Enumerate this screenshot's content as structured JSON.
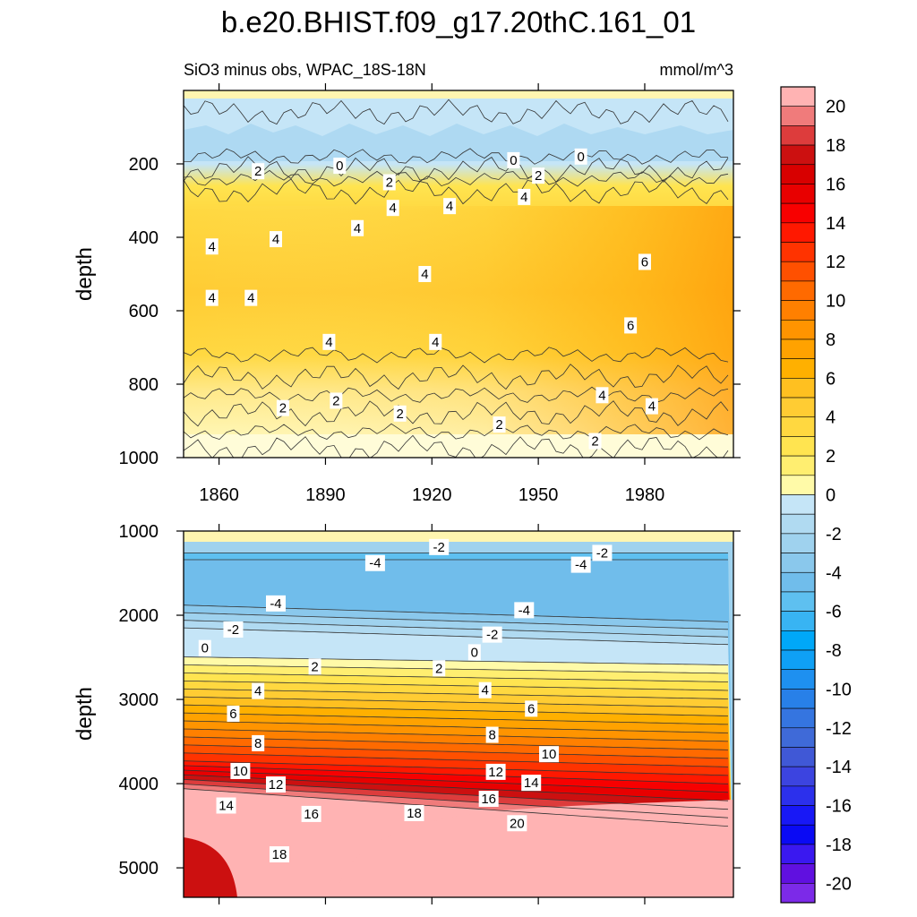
{
  "chart_data": {
    "type": "heatmap",
    "title": "b.e20.BHIST.f09_g17.20thC.161_01",
    "subtitle_left": "SiO3 minus obs, WPAC_18S-18N",
    "subtitle_right": "mmol/m^3",
    "ylabel": "depth",
    "xticks": [
      "1860",
      "1890",
      "1920",
      "1950",
      "1980"
    ],
    "xrange": [
      1850,
      2005
    ],
    "panels": [
      {
        "name": "upper",
        "ylabel": "depth",
        "ylim": [
          0,
          1000
        ],
        "yticks": [
          "200",
          "400",
          "600",
          "800",
          "1000"
        ],
        "contour_labels": [
          {
            "text": "0",
            "year": 1943,
            "depth": 190
          },
          {
            "text": "0",
            "year": 1962,
            "depth": 180
          },
          {
            "text": "0",
            "year": 1894,
            "depth": 205
          },
          {
            "text": "2",
            "year": 1871,
            "depth": 220
          },
          {
            "text": "2",
            "year": 1908,
            "depth": 250
          },
          {
            "text": "2",
            "year": 1950,
            "depth": 232
          },
          {
            "text": "4",
            "year": 1925,
            "depth": 315
          },
          {
            "text": "4",
            "year": 1946,
            "depth": 290
          },
          {
            "text": "4",
            "year": 1858,
            "depth": 425
          },
          {
            "text": "4",
            "year": 1876,
            "depth": 405
          },
          {
            "text": "4",
            "year": 1899,
            "depth": 375
          },
          {
            "text": "4",
            "year": 1909,
            "depth": 320
          },
          {
            "text": "4",
            "year": 1918,
            "depth": 500
          },
          {
            "text": "4",
            "year": 1858,
            "depth": 565
          },
          {
            "text": "4",
            "year": 1869,
            "depth": 565
          },
          {
            "text": "4",
            "year": 1891,
            "depth": 685
          },
          {
            "text": "4",
            "year": 1921,
            "depth": 685
          },
          {
            "text": "6",
            "year": 1980,
            "depth": 467
          },
          {
            "text": "6",
            "year": 1976,
            "depth": 640
          },
          {
            "text": "4",
            "year": 1968,
            "depth": 830
          },
          {
            "text": "4",
            "year": 1982,
            "depth": 860
          },
          {
            "text": "2",
            "year": 1878,
            "depth": 865
          },
          {
            "text": "2",
            "year": 1893,
            "depth": 845
          },
          {
            "text": "2",
            "year": 1911,
            "depth": 880
          },
          {
            "text": "2",
            "year": 1939,
            "depth": 910
          },
          {
            "text": "2",
            "year": 1966,
            "depth": 955
          }
        ]
      },
      {
        "name": "lower",
        "ylabel": "depth",
        "ylim": [
          1000,
          5350
        ],
        "yticks": [
          "1000",
          "2000",
          "3000",
          "4000",
          "5000"
        ],
        "contour_labels": [
          {
            "text": "-2",
            "year": 1922,
            "depth": 1190
          },
          {
            "text": "-2",
            "year": 1968,
            "depth": 1260
          },
          {
            "text": "-4",
            "year": 1904,
            "depth": 1380
          },
          {
            "text": "-4",
            "year": 1962,
            "depth": 1400
          },
          {
            "text": "-4",
            "year": 1876,
            "depth": 1860
          },
          {
            "text": "-4",
            "year": 1946,
            "depth": 1940
          },
          {
            "text": "-2",
            "year": 1864,
            "depth": 2170
          },
          {
            "text": "-2",
            "year": 1937,
            "depth": 2230
          },
          {
            "text": "0",
            "year": 1856,
            "depth": 2390
          },
          {
            "text": "0",
            "year": 1932,
            "depth": 2440
          },
          {
            "text": "2",
            "year": 1887,
            "depth": 2610
          },
          {
            "text": "2",
            "year": 1922,
            "depth": 2630
          },
          {
            "text": "4",
            "year": 1871,
            "depth": 2900
          },
          {
            "text": "4",
            "year": 1935,
            "depth": 2890
          },
          {
            "text": "6",
            "year": 1864,
            "depth": 3170
          },
          {
            "text": "6",
            "year": 1948,
            "depth": 3110
          },
          {
            "text": "8",
            "year": 1871,
            "depth": 3520
          },
          {
            "text": "8",
            "year": 1937,
            "depth": 3420
          },
          {
            "text": "10",
            "year": 1866,
            "depth": 3850
          },
          {
            "text": "10",
            "year": 1953,
            "depth": 3650
          },
          {
            "text": "12",
            "year": 1876,
            "depth": 4010
          },
          {
            "text": "12",
            "year": 1938,
            "depth": 3860
          },
          {
            "text": "14",
            "year": 1862,
            "depth": 4260
          },
          {
            "text": "14",
            "year": 1948,
            "depth": 3990
          },
          {
            "text": "16",
            "year": 1886,
            "depth": 4360
          },
          {
            "text": "16",
            "year": 1936,
            "depth": 4180
          },
          {
            "text": "18",
            "year": 1877,
            "depth": 4840
          },
          {
            "text": "18",
            "year": 1915,
            "depth": 4350
          },
          {
            "text": "20",
            "year": 1944,
            "depth": 4470
          }
        ]
      }
    ],
    "colorbar": {
      "levels": [
        -20,
        -19,
        -18,
        -17,
        -16,
        -15,
        -14,
        -13,
        -12,
        -11,
        -10,
        -9,
        -8,
        -7,
        -6,
        -5,
        -4,
        -3,
        -2,
        -1,
        0,
        1,
        2,
        3,
        4,
        5,
        6,
        7,
        8,
        9,
        10,
        11,
        12,
        13,
        14,
        15,
        16,
        17,
        18,
        19,
        20
      ],
      "tick_labels": [
        "20",
        "18",
        "16",
        "14",
        "12",
        "10",
        "8",
        "6",
        "4",
        "2",
        "0",
        "-2",
        "-4",
        "-6",
        "-8",
        "-10",
        "-12",
        "-14",
        "-16",
        "-18",
        "-20"
      ],
      "colors_top_to_bottom": [
        "#ffb3b3",
        "#f07b7b",
        "#dd3c3c",
        "#cc1010",
        "#d80000",
        "#e80000",
        "#f80000",
        "#ff1800",
        "#ff3300",
        "#ff5000",
        "#ff6a00",
        "#ff8000",
        "#ff9400",
        "#ffa200",
        "#ffb000",
        "#ffc020",
        "#ffcc33",
        "#ffd840",
        "#ffe450",
        "#ffee70",
        "#fffaa8",
        "#c5e5f7",
        "#b0daf1",
        "#9fd2ee",
        "#8ac8ec",
        "#70bdeb",
        "#5ec0f0",
        "#38b4f3",
        "#00a8f8",
        "#0fa0f5",
        "#1e90f0",
        "#2880e8",
        "#3575e0",
        "#3f6ad8",
        "#4058d6",
        "#3c44e0",
        "#2c30ec",
        "#1818f6",
        "#0a0af4",
        "#3a18f0",
        "#6010e0",
        "#7c2ae8"
      ]
    }
  }
}
